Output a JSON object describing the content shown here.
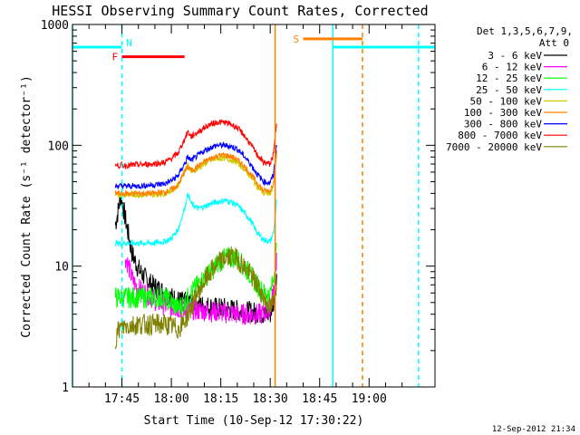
{
  "chart_data": {
    "type": "line",
    "title": "HESSI Observing Summary Count Rates, Corrected",
    "xlabel": "Start Time (10-Sep-12 17:30:22)",
    "ylabel": "Corrected Count Rate (s⁻¹ detector⁻¹)",
    "yscale": "log",
    "ylim": [
      1,
      1000
    ],
    "xlim_minutes": [
      0,
      110
    ],
    "x_unit": "minutes after 17:30:22",
    "x_ticks": [
      {
        "label": "17:45",
        "x": 15
      },
      {
        "label": "18:00",
        "x": 30
      },
      {
        "label": "18:15",
        "x": 45
      },
      {
        "label": "18:30",
        "x": 60
      },
      {
        "label": "18:45",
        "x": 75
      },
      {
        "label": "19:00",
        "x": 90
      }
    ],
    "y_ticks": [
      {
        "label": "1",
        "y": 1
      },
      {
        "label": "10",
        "y": 10
      },
      {
        "label": "100",
        "y": 100
      },
      {
        "label": "1000",
        "y": 1000
      }
    ],
    "legend": {
      "header": [
        "Det 1,3,5,6,7,9,",
        "Att 0"
      ],
      "placement": "right"
    },
    "series": [
      {
        "name": "3 - 6 keV",
        "color": "#000000",
        "x": [
          13,
          14,
          14.5,
          15,
          16,
          17,
          18,
          19,
          20,
          22,
          24,
          26,
          28,
          30,
          32,
          34,
          36,
          38,
          40,
          42,
          44,
          46,
          48,
          50,
          52,
          54,
          56,
          58,
          60,
          61,
          62
        ],
        "y": [
          22,
          30,
          38,
          35,
          25,
          18,
          13,
          11,
          9.5,
          8,
          7,
          6.5,
          6,
          5.5,
          5.2,
          5,
          5,
          4.8,
          4.7,
          4.6,
          4.5,
          4.5,
          4.4,
          4.3,
          4.2,
          4.2,
          4.1,
          4,
          4,
          5,
          8
        ]
      },
      {
        "name": "6 - 12 keV",
        "color": "#ff00ff",
        "x": [
          16,
          17,
          18,
          19,
          20,
          22,
          24,
          26,
          28,
          30,
          32,
          34,
          36,
          38,
          40,
          42,
          44,
          46,
          48,
          50,
          52,
          54,
          56,
          58,
          60,
          61,
          62
        ],
        "y": [
          12,
          10,
          8,
          7,
          6.5,
          6,
          5.5,
          5,
          4.8,
          4.6,
          4.5,
          4.4,
          4.4,
          4.3,
          4.3,
          4.2,
          4.2,
          4.1,
          4.1,
          4,
          4,
          4,
          4,
          4,
          4.5,
          6,
          12
        ]
      },
      {
        "name": "12 - 25 keV",
        "color": "#00ff00",
        "x": [
          13,
          16,
          20,
          24,
          28,
          30,
          32,
          34,
          36,
          38,
          40,
          42,
          44,
          46,
          48,
          50,
          52,
          54,
          56,
          58,
          60,
          61,
          62
        ],
        "y": [
          5.5,
          5.5,
          5.5,
          5.5,
          5.5,
          5,
          4.5,
          5,
          6,
          7,
          8,
          9,
          10.5,
          11.5,
          12,
          11.5,
          10,
          8.5,
          7,
          6,
          5.8,
          8,
          14
        ]
      },
      {
        "name": "25 - 50 keV",
        "color": "#00ffff",
        "x": [
          13,
          14,
          16,
          20,
          24,
          28,
          30,
          32,
          34,
          35,
          36,
          38,
          40,
          42,
          44,
          46,
          48,
          50,
          52,
          54,
          56,
          58,
          60,
          61,
          62
        ],
        "y": [
          15.5,
          15.5,
          15.5,
          15.5,
          15.5,
          16,
          17,
          20,
          30,
          40,
          33,
          30,
          31,
          33,
          34,
          35,
          34,
          32,
          28,
          24,
          19,
          16.5,
          16,
          19,
          35
        ]
      },
      {
        "name": "50 - 100 keV",
        "color": "#cccc00",
        "x": [
          13,
          14,
          16,
          20,
          24,
          28,
          30,
          32,
          34,
          35,
          36,
          38,
          40,
          42,
          44,
          46,
          48,
          50,
          52,
          54,
          56,
          58,
          60,
          61,
          62
        ],
        "y": [
          39,
          39,
          39,
          39,
          39,
          40,
          42,
          46,
          62,
          70,
          60,
          64,
          70,
          75,
          78,
          78,
          76,
          72,
          64,
          55,
          46,
          40,
          40,
          47,
          85
        ]
      },
      {
        "name": "100 - 300 keV",
        "color": "#ff7f00",
        "x": [
          13,
          14,
          16,
          20,
          24,
          28,
          30,
          32,
          34,
          35,
          36,
          38,
          40,
          42,
          44,
          46,
          48,
          50,
          52,
          54,
          56,
          58,
          60,
          61,
          62
        ],
        "y": [
          40,
          40,
          40,
          40,
          40,
          41,
          43,
          47,
          60,
          66,
          62,
          67,
          73,
          78,
          82,
          83,
          81,
          76,
          68,
          58,
          49,
          42,
          42,
          50,
          90
        ]
      },
      {
        "name": "300 - 800 keV",
        "color": "#0000ff",
        "x": [
          13,
          14,
          16,
          20,
          24,
          28,
          30,
          32,
          34,
          35,
          36,
          38,
          40,
          42,
          44,
          46,
          48,
          50,
          52,
          54,
          56,
          58,
          60,
          61,
          62
        ],
        "y": [
          46,
          46,
          46,
          46,
          47,
          48,
          51,
          56,
          70,
          80,
          75,
          82,
          90,
          96,
          100,
          100,
          98,
          93,
          82,
          70,
          58,
          50,
          49,
          58,
          105
        ]
      },
      {
        "name": "800 - 7000 keV",
        "color": "#ff0000",
        "x": [
          13,
          14,
          16,
          20,
          24,
          28,
          30,
          32,
          34,
          35,
          36,
          38,
          40,
          42,
          44,
          46,
          48,
          50,
          52,
          54,
          56,
          58,
          60,
          61,
          62
        ],
        "y": [
          68,
          68,
          68,
          69,
          70,
          72,
          78,
          86,
          112,
          130,
          118,
          128,
          140,
          150,
          155,
          155,
          150,
          140,
          122,
          102,
          84,
          72,
          70,
          85,
          160
        ]
      },
      {
        "name": "7000 - 20000 keV",
        "color": "#808000",
        "x": [
          13,
          14,
          16,
          20,
          24,
          28,
          30,
          32,
          34,
          36,
          38,
          40,
          42,
          44,
          46,
          48,
          50,
          52,
          54,
          56,
          58,
          60,
          61,
          62
        ],
        "y": [
          2.5,
          3,
          3.2,
          3.3,
          3.3,
          3.3,
          3.2,
          3,
          3.5,
          4.5,
          6,
          7.5,
          9,
          10.5,
          11.5,
          12,
          11.5,
          10,
          8.5,
          7,
          5.5,
          4.5,
          5,
          8
        ]
      }
    ],
    "annotations": {
      "attenuator_bars": [
        {
          "x0": 0,
          "x1": 15,
          "y": 650,
          "color": "#00ffff"
        },
        {
          "x0": 79,
          "x1": 110,
          "y": 650,
          "color": "#00ffff"
        }
      ],
      "saa_bar": {
        "label": "S",
        "x0": 70,
        "x1": 88,
        "y": 760,
        "color": "#ff7f00"
      },
      "flare_bar": {
        "label": "F",
        "x0": 15,
        "x1": 34,
        "y": 540,
        "color": "#ff0000"
      },
      "night_label": {
        "label": "N",
        "x": 16,
        "y": 650,
        "color": "#00ffff"
      },
      "vertical_lines": [
        {
          "x": 0,
          "color": "#00ffff",
          "dashed": false
        },
        {
          "x": 15,
          "color": "#00ffff",
          "dashed": true
        },
        {
          "x": 61.5,
          "color": "#ff7f00",
          "dashed": false
        },
        {
          "x": 79,
          "color": "#00ffff",
          "dashed": false
        },
        {
          "x": 88,
          "color": "#ff7f00",
          "dashed": true
        },
        {
          "x": 105,
          "color": "#00ffff",
          "dashed": true
        }
      ]
    }
  },
  "footer": {
    "timestamp": "12-Sep-2012 21:34"
  }
}
